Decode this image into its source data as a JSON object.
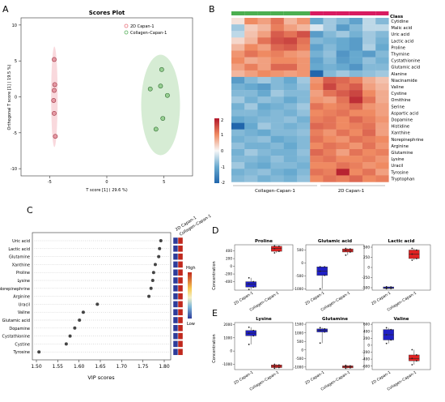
{
  "panels": {
    "a": "A",
    "b": "B",
    "c": "C",
    "d": "D",
    "e": "E"
  },
  "scores": {
    "title": "Scores Plot",
    "xlabel": "T score [1] ( 29.6 %)",
    "ylabel": "Orthogonal T score [1] ( 19.5 %)",
    "legend": [
      "2D Capan-1",
      "Collagen–Capan-1"
    ],
    "colors": {
      "2d": "#e8707c",
      "collagen": "#56b05a"
    }
  },
  "heatmap": {
    "class_label": "Class",
    "group_labels": [
      "Collagen–Capan-1",
      "2D Capan-1"
    ],
    "colorbar_ticks": [
      "2",
      "1",
      "0",
      "-1",
      "-2"
    ]
  },
  "vip": {
    "xlabel": "VIP scores",
    "high_label": "High",
    "low_label": "Low",
    "header": [
      "2D Capan-1",
      "Collagen–Capan-1"
    ]
  },
  "box": {
    "ylabel": "Concentration",
    "xticklabels": [
      "2D Capan-1",
      "Collagen–Capan-1"
    ]
  },
  "chart_data": [
    {
      "type": "scatter",
      "name_ref": "A",
      "title": "Scores Plot",
      "xlabel": "T score [1] ( 29.6 %)",
      "ylabel": "Orthogonal T score [1] ( 19.5 %)",
      "xlim": [
        -7.5,
        7.5
      ],
      "ylim": [
        -11,
        11
      ],
      "xticks": [
        -5,
        0,
        5
      ],
      "yticks": [
        -10,
        -5,
        0,
        5,
        10
      ],
      "series": [
        {
          "name": "2D Capan-1",
          "points": [
            [
              -4.6,
              5.2
            ],
            [
              -4.55,
              1.7
            ],
            [
              -4.6,
              0.9
            ],
            [
              -4.65,
              -0.5
            ],
            [
              -4.6,
              -2.3
            ],
            [
              -4.5,
              -5.5
            ]
          ]
        },
        {
          "name": "Collagen–Capan-1",
          "points": [
            [
              4.8,
              3.8
            ],
            [
              3.8,
              1.1
            ],
            [
              4.7,
              1.5
            ],
            [
              5.3,
              0.2
            ],
            [
              4.9,
              -3.0
            ],
            [
              4.3,
              -4.5
            ]
          ]
        }
      ]
    },
    {
      "type": "heatmap",
      "name_ref": "B",
      "rows": [
        "Cytidine",
        "Malic acid",
        "Uric acid",
        "Lactic acid",
        "Proline",
        "Thymine",
        "Cystathionine",
        "Glutamic acid",
        "Alanine",
        "Niacinamide",
        "Valine",
        "Cystine",
        "Ornithine",
        "Serine",
        "Aspartic acid",
        "Dopamine",
        "Histidine",
        "Xanthine",
        "Norepinephrine",
        "Arginine",
        "Glutamine",
        "Lysine",
        "Uracil",
        "Tyrosine",
        "Tryptophan"
      ],
      "columns": 12,
      "groups": [
        "Collagen–Capan-1",
        "Collagen–Capan-1",
        "Collagen–Capan-1",
        "Collagen–Capan-1",
        "Collagen–Capan-1",
        "Collagen–Capan-1",
        "2D Capan-1",
        "2D Capan-1",
        "2D Capan-1",
        "2D Capan-1",
        "2D Capan-1",
        "2D Capan-1"
      ],
      "values": [
        [
          0.2,
          1.0,
          0.8,
          1.2,
          0.6,
          0.9,
          -1.0,
          -0.6,
          -0.8,
          -1.1,
          -0.4,
          -0.8
        ],
        [
          -0.6,
          0.4,
          0.6,
          1.1,
          0.8,
          0.6,
          -0.2,
          -0.6,
          -1.2,
          -0.8,
          -0.4,
          -0.4
        ],
        [
          -0.4,
          0.5,
          0.8,
          1.4,
          1.2,
          1.5,
          -1.2,
          -0.8,
          -0.6,
          -0.9,
          -0.6,
          -0.8
        ],
        [
          0.3,
          0.6,
          1.2,
          1.5,
          1.6,
          1.2,
          -0.8,
          -0.9,
          -1.0,
          -1.2,
          -0.6,
          -0.9
        ],
        [
          0.6,
          1.0,
          0.8,
          1.3,
          1.4,
          1.1,
          -1.1,
          -0.8,
          -1.0,
          -1.2,
          -0.5,
          -1.0
        ],
        [
          0.9,
          1.2,
          1.0,
          1.1,
          0.9,
          0.8,
          -0.9,
          -0.7,
          -1.3,
          -1.0,
          -1.2,
          -0.8
        ],
        [
          1.0,
          0.7,
          0.8,
          1.0,
          1.0,
          0.9,
          -1.1,
          -0.8,
          -1.2,
          -1.0,
          -0.7,
          -0.9
        ],
        [
          0.8,
          1.1,
          0.8,
          1.3,
          1.3,
          0.9,
          -1.0,
          -0.9,
          -1.0,
          -1.3,
          -0.8,
          -0.8
        ],
        [
          0.6,
          0.8,
          1.0,
          0.9,
          0.8,
          0.9,
          -2.0,
          -0.8,
          -0.6,
          -0.8,
          -0.7,
          -0.6
        ],
        [
          -1.2,
          -0.8,
          -0.6,
          -0.8,
          -1.0,
          -0.6,
          0.9,
          1.4,
          1.3,
          1.1,
          0.7,
          0.5
        ],
        [
          -0.9,
          -1.0,
          -1.2,
          -0.8,
          -0.9,
          -0.7,
          1.0,
          1.6,
          1.2,
          1.4,
          0.8,
          0.6
        ],
        [
          -0.8,
          -0.8,
          -1.0,
          -0.6,
          -0.8,
          -0.8,
          0.8,
          1.2,
          1.4,
          1.6,
          1.0,
          0.7
        ],
        [
          -0.6,
          -0.9,
          -0.7,
          -0.8,
          -1.0,
          -0.8,
          0.9,
          0.8,
          1.2,
          1.8,
          1.2,
          0.7
        ],
        [
          -0.9,
          -0.6,
          -1.0,
          -0.9,
          -0.8,
          -0.6,
          1.2,
          1.0,
          1.1,
          1.3,
          0.9,
          0.8
        ],
        [
          -0.8,
          -0.8,
          -0.9,
          -0.8,
          -0.9,
          -0.7,
          1.0,
          1.1,
          1.2,
          1.0,
          1.0,
          0.8
        ],
        [
          -1.0,
          -0.9,
          -0.8,
          -0.8,
          -0.7,
          -0.9,
          1.1,
          1.2,
          1.0,
          1.3,
          1.1,
          0.9
        ],
        [
          -2.0,
          -1.0,
          -0.6,
          -0.8,
          -0.9,
          -0.8,
          1.3,
          1.2,
          1.0,
          1.1,
          1.2,
          0.8
        ],
        [
          -0.8,
          -0.9,
          -1.0,
          -0.8,
          -0.8,
          -0.7,
          1.1,
          0.9,
          1.2,
          1.0,
          1.3,
          0.8
        ],
        [
          -0.9,
          -0.8,
          -0.7,
          -1.0,
          -0.9,
          -0.8,
          1.2,
          1.0,
          0.9,
          1.2,
          1.1,
          1.0
        ],
        [
          -0.7,
          -0.9,
          -0.9,
          -0.8,
          -1.0,
          -0.8,
          1.0,
          1.2,
          1.1,
          0.9,
          1.2,
          0.9
        ],
        [
          -0.9,
          -0.6,
          -0.8,
          -0.9,
          -0.9,
          -0.7,
          1.3,
          1.1,
          0.8,
          1.2,
          1.0,
          1.1
        ],
        [
          -0.8,
          -0.8,
          -0.9,
          -0.7,
          -0.9,
          -0.8,
          1.1,
          1.2,
          1.0,
          1.0,
          1.1,
          0.9
        ],
        [
          -0.6,
          -0.9,
          -1.0,
          -0.8,
          -0.8,
          -0.9,
          1.0,
          1.0,
          1.2,
          1.1,
          0.9,
          1.0
        ],
        [
          -0.9,
          -0.8,
          -0.7,
          -0.9,
          -1.0,
          -0.8,
          1.2,
          1.1,
          1.9,
          1.0,
          1.2,
          0.8
        ],
        [
          -0.8,
          -0.7,
          -0.9,
          -0.8,
          -0.9,
          -0.7,
          1.0,
          1.2,
          1.1,
          1.3,
          1.0,
          1.1
        ]
      ],
      "colorbar_range": [
        -2,
        2
      ]
    },
    {
      "type": "scatter",
      "name_ref": "C",
      "xlabel": "VIP scores",
      "xlim": [
        1.5,
        1.8
      ],
      "xticks": [
        "1.50",
        "1.55",
        "1.60",
        "1.65",
        "1.70",
        "1.75",
        "1.80"
      ],
      "categories": [
        "Uric acid",
        "Lactic acid",
        "Glutamine",
        "Xanthine",
        "Proline",
        "Lysine",
        "Norepinephrine",
        "Arginine",
        "Uracil",
        "Valine",
        "Glutamic acid",
        "Dopamine",
        "Cystathionine",
        "Cystine",
        "Tyrosine"
      ],
      "values": [
        1.792,
        1.789,
        1.787,
        1.779,
        1.775,
        1.773,
        1.769,
        1.764,
        1.643,
        1.61,
        1.601,
        1.59,
        1.579,
        1.57,
        1.506
      ],
      "higher_group": [
        "Collagen",
        "Collagen",
        "Collagen",
        "Collagen",
        "Collagen",
        "Collagen",
        "Collagen",
        "Collagen",
        "Collagen",
        "Collagen",
        "Collagen",
        "Collagen",
        "Collagen",
        "Collagen",
        "Collagen"
      ]
    },
    {
      "type": "box",
      "name_ref": "D",
      "ylabel": "Concentration",
      "plots": [
        {
          "title": "Proline",
          "yticks": [
            400,
            200,
            0,
            -200,
            -400
          ],
          "ylim": [
            -620,
            560
          ],
          "groups": [
            {
              "name": "2D Capan-1",
              "q1": -540,
              "median": -460,
              "q3": -400,
              "min": -600,
              "max": -300
            },
            {
              "name": "Collagen–Capan-1",
              "q1": 390,
              "median": 460,
              "q3": 520,
              "min": 350,
              "max": 530
            }
          ]
        },
        {
          "title": "Glutamic acid",
          "yticks": [
            500,
            0,
            -500,
            -1000
          ],
          "ylim": [
            -1050,
            700
          ],
          "groups": [
            {
              "name": "2D Capan-1",
              "q1": -480,
              "median": -320,
              "q3": -150,
              "min": -1000,
              "max": -150
            },
            {
              "name": "Collagen–Capan-1",
              "q1": 420,
              "median": 480,
              "q3": 540,
              "min": 300,
              "max": 560
            }
          ]
        },
        {
          "title": "Lactic acid",
          "yticks": [
            500,
            250,
            0,
            -250,
            -500
          ],
          "ylim": [
            -560,
            560
          ],
          "groups": [
            {
              "name": "2D Capan-1",
              "q1": -520,
              "median": -505,
              "q3": -480,
              "min": -525,
              "max": -475
            },
            {
              "name": "Collagen–Capan-1",
              "q1": 220,
              "median": 330,
              "q3": 430,
              "min": 180,
              "max": 470
            }
          ]
        }
      ]
    },
    {
      "type": "box",
      "name_ref": "E",
      "ylabel": "Concentration",
      "plots": [
        {
          "title": "Lysine",
          "yticks": [
            2000,
            1000,
            0,
            -1000
          ],
          "ylim": [
            -1400,
            2150
          ],
          "groups": [
            {
              "name": "2D Capan-1",
              "q1": 1150,
              "median": 1350,
              "q3": 1550,
              "min": 500,
              "max": 1800
            },
            {
              "name": "Collagen–Capan-1",
              "q1": -1250,
              "median": -1150,
              "q3": -1050,
              "min": -1300,
              "max": -1000
            }
          ]
        },
        {
          "title": "Glutamine",
          "yticks": [
            1500,
            1000,
            500,
            0,
            -500,
            -1000
          ],
          "ylim": [
            -1150,
            1600
          ],
          "groups": [
            {
              "name": "2D Capan-1",
              "q1": 1050,
              "median": 1150,
              "q3": 1230,
              "min": 400,
              "max": 1300
            },
            {
              "name": "Collagen–Capan-1",
              "q1": -1050,
              "median": -980,
              "q3": -930,
              "min": -1080,
              "max": -900
            }
          ]
        },
        {
          "title": "Valine",
          "yticks": [
            600,
            400,
            200,
            0,
            -200,
            -400,
            -600
          ],
          "ylim": [
            -700,
            650
          ],
          "groups": [
            {
              "name": "2D Capan-1",
              "q1": 150,
              "median": 300,
              "q3": 450,
              "min": 50,
              "max": 500
            },
            {
              "name": "Collagen–Capan-1",
              "q1": -450,
              "median": -380,
              "q3": -280,
              "min": -560,
              "max": -130
            }
          ]
        }
      ]
    }
  ]
}
